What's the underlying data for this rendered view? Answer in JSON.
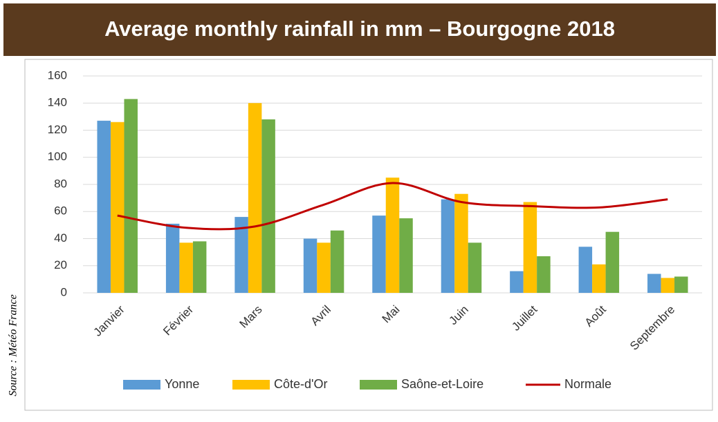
{
  "chart_data": {
    "type": "bar",
    "title": "Average monthly rainfall in mm – Bourgogne 2018",
    "source": "Source : Météo France",
    "categories": [
      "Janvier",
      "Février",
      "Mars",
      "Avril",
      "Mai",
      "Juin",
      "Juillet",
      "Août",
      "Septembre"
    ],
    "series": [
      {
        "name": "Yonne",
        "color": "#5b9bd5",
        "type": "bar",
        "values": [
          127,
          51,
          56,
          40,
          57,
          69,
          16,
          34,
          14
        ]
      },
      {
        "name": "Côte-d'Or",
        "color": "#ffc000",
        "type": "bar",
        "values": [
          126,
          37,
          140,
          37,
          85,
          73,
          67,
          21,
          11
        ]
      },
      {
        "name": "Saône-et-Loire",
        "color": "#70ad47",
        "type": "bar",
        "values": [
          143,
          38,
          128,
          46,
          55,
          37,
          27,
          45,
          12
        ]
      },
      {
        "name": "Normale",
        "color": "#c00000",
        "type": "line",
        "values": [
          57,
          48,
          49,
          65,
          81,
          67,
          64,
          63,
          69
        ]
      }
    ],
    "ylim": [
      0,
      160
    ],
    "yticks": [
      0,
      20,
      40,
      60,
      80,
      100,
      120,
      140,
      160
    ],
    "grid": true,
    "legend": "bottom"
  }
}
